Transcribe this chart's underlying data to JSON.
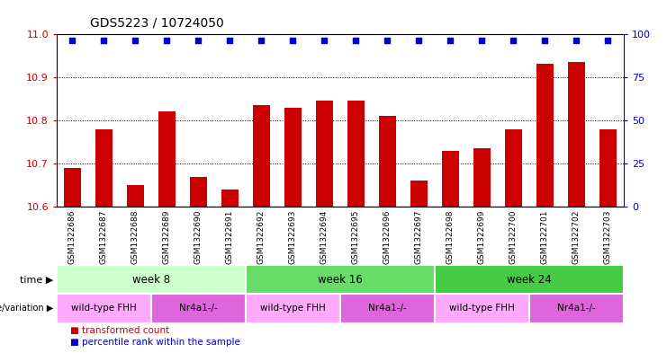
{
  "title": "GDS5223 / 10724050",
  "samples": [
    "GSM1322686",
    "GSM1322687",
    "GSM1322688",
    "GSM1322689",
    "GSM1322690",
    "GSM1322691",
    "GSM1322692",
    "GSM1322693",
    "GSM1322694",
    "GSM1322695",
    "GSM1322696",
    "GSM1322697",
    "GSM1322698",
    "GSM1322699",
    "GSM1322700",
    "GSM1322701",
    "GSM1322702",
    "GSM1322703"
  ],
  "bar_values": [
    10.69,
    10.78,
    10.65,
    10.82,
    10.67,
    10.64,
    10.835,
    10.83,
    10.845,
    10.845,
    10.81,
    10.66,
    10.73,
    10.735,
    10.78,
    10.93,
    10.935,
    10.78
  ],
  "percentile_values": [
    96,
    96,
    96,
    96,
    96,
    96,
    96,
    96,
    96,
    96,
    96,
    96,
    96,
    96,
    96,
    96,
    96,
    96
  ],
  "bar_color": "#cc0000",
  "percentile_color": "#0000cc",
  "ylim_left": [
    10.6,
    11.0
  ],
  "ylim_right": [
    0,
    100
  ],
  "yticks_left": [
    10.6,
    10.7,
    10.8,
    10.9,
    11.0
  ],
  "yticks_right": [
    0,
    25,
    50,
    75,
    100
  ],
  "grid_lines": [
    10.7,
    10.8,
    10.9
  ],
  "time_groups": [
    {
      "label": "week 8",
      "start": 0,
      "end": 6,
      "color": "#ccffcc"
    },
    {
      "label": "week 16",
      "start": 6,
      "end": 12,
      "color": "#66dd66"
    },
    {
      "label": "week 24",
      "start": 12,
      "end": 18,
      "color": "#44cc44"
    }
  ],
  "genotype_groups": [
    {
      "label": "wild-type FHH",
      "start": 0,
      "end": 3,
      "color": "#ffaaff"
    },
    {
      "label": "Nr4a1-/-",
      "start": 3,
      "end": 6,
      "color": "#dd66dd"
    },
    {
      "label": "wild-type FHH",
      "start": 6,
      "end": 9,
      "color": "#ffaaff"
    },
    {
      "label": "Nr4a1-/-",
      "start": 9,
      "end": 12,
      "color": "#dd66dd"
    },
    {
      "label": "wild-type FHH",
      "start": 12,
      "end": 15,
      "color": "#ffaaff"
    },
    {
      "label": "Nr4a1-/-",
      "start": 15,
      "end": 18,
      "color": "#dd66dd"
    }
  ],
  "time_row_label": "time",
  "genotype_row_label": "genotype/variation",
  "legend_bar_label": "transformed count",
  "legend_perc_label": "percentile rank within the sample",
  "background_color": "#ffffff",
  "plot_bg_color": "#ffffff",
  "tick_color_left": "#cc0000",
  "tick_color_right": "#0000cc",
  "bar_width": 0.55,
  "sample_bg_color": "#dddddd"
}
